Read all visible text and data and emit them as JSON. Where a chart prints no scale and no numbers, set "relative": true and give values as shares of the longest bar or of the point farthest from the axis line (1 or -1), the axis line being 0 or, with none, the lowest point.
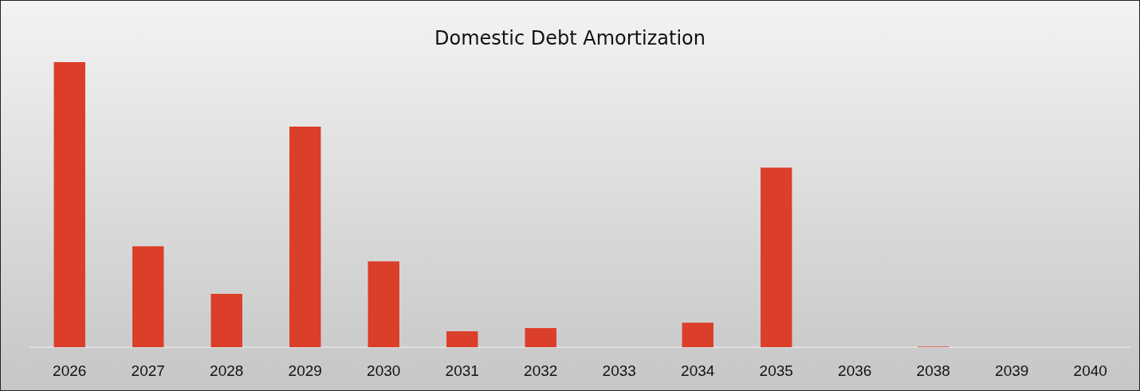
{
  "chart_data": {
    "type": "bar",
    "title": "Domestic Debt Amortization",
    "relative": true,
    "categories": [
      "2026",
      "2027",
      "2028",
      "2029",
      "2030",
      "2031",
      "2032",
      "2033",
      "2034",
      "2035",
      "2036",
      "2038",
      "2039",
      "2040"
    ],
    "values": [
      1,
      0.354,
      0.187,
      0.774,
      0.301,
      0.056,
      0.067,
      0,
      0.086,
      0.63,
      0,
      0.002,
      0,
      0
    ],
    "color": "#db3e29"
  }
}
